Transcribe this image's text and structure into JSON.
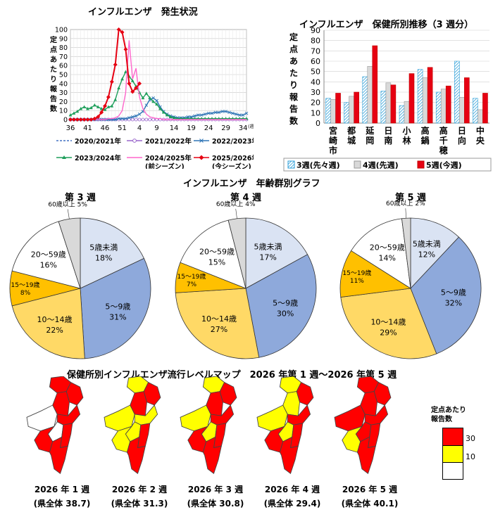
{
  "colors": {
    "s2020": "#4472C4",
    "s2021": "#9966CC",
    "s2022": "#2E75B6",
    "s2023": "#1E9E5A",
    "s2024": "#FF66CC",
    "s2025": "#E60012",
    "level30": "#FF0000",
    "level10": "#FFFF00",
    "level0": "#FFFFFF",
    "pie5u": "#DAE3F3",
    "pie5_9": "#8EA9DB",
    "pie10_14": "#FFD966",
    "pie15_19": "#FFC000",
    "pie20_59": "#FFFFFF",
    "pie60": "#D9D9D9"
  },
  "chart_data": [
    {
      "id": "trend",
      "type": "line",
      "title": "インフルエンザ　発生状況",
      "ylabel": "定点あたり報告数",
      "ylim": [
        0,
        100
      ],
      "yticks": [
        0,
        10,
        20,
        30,
        40,
        50,
        60,
        70,
        80,
        90,
        100
      ],
      "xticks": [
        "36",
        "41",
        "46",
        "51",
        "4",
        "9",
        "14",
        "19",
        "24",
        "29",
        "34"
      ],
      "xunit": "(週)",
      "series": [
        {
          "key": "s2020",
          "name": "2020/2021年",
          "style": "dash",
          "values": [
            0,
            0,
            0,
            0,
            0,
            0,
            0,
            0,
            0,
            0,
            0,
            0,
            0,
            0,
            0,
            0,
            0,
            0,
            0,
            0,
            0,
            0,
            0,
            0,
            0,
            0,
            0,
            0,
            0,
            0,
            0,
            0,
            0,
            0,
            0,
            0,
            0,
            0,
            0,
            0,
            0,
            0,
            0,
            0,
            0,
            0,
            0,
            0,
            0,
            0,
            0,
            0
          ]
        },
        {
          "key": "s2021",
          "name": "2021/2022年",
          "style": "circle",
          "values": [
            0,
            0,
            0,
            0,
            0,
            0,
            0,
            0,
            0,
            0,
            0,
            0,
            0,
            0,
            0,
            0,
            0,
            0,
            0,
            0,
            0,
            0,
            0,
            0,
            0,
            0,
            0,
            0,
            0,
            0,
            0,
            0,
            0,
            0,
            0,
            0,
            0,
            0,
            0,
            0,
            0,
            0,
            0,
            0,
            0,
            0,
            0,
            0,
            0,
            0,
            0,
            0
          ]
        },
        {
          "key": "s2022",
          "name": "2022/2023年",
          "style": "cross",
          "values": [
            0,
            0,
            0,
            0,
            0,
            0,
            0,
            0,
            0,
            0,
            0,
            0,
            0,
            0,
            1,
            1,
            1,
            2,
            3,
            4,
            6,
            9,
            16,
            22,
            24,
            21,
            14,
            9,
            6,
            4,
            3,
            2,
            2,
            2,
            3,
            3,
            4,
            5,
            5,
            6,
            7,
            7,
            8,
            8,
            9,
            9,
            8,
            7,
            6,
            5,
            5,
            7
          ]
        },
        {
          "key": "s2023",
          "name": "2023/2024年",
          "style": "triangle",
          "values": [
            5,
            7,
            9,
            12,
            14,
            12,
            13,
            16,
            14,
            12,
            11,
            14,
            15,
            22,
            35,
            45,
            53,
            48,
            43,
            37,
            30,
            24,
            29,
            24,
            20,
            17,
            12,
            8,
            5,
            3,
            2,
            1,
            1,
            1,
            1,
            1,
            1,
            1,
            1,
            1,
            1,
            1,
            1,
            1,
            1,
            1,
            1,
            1,
            1,
            1,
            1,
            1
          ]
        },
        {
          "key": "s2024",
          "name": "2024/2025年\n(前シーズン)",
          "style": "plain",
          "values": [
            0,
            0,
            0,
            0,
            0,
            0,
            0,
            0,
            0,
            0,
            0,
            1,
            1,
            2,
            4,
            10,
            30,
            88,
            45,
            57,
            25,
            12,
            6,
            3,
            2,
            1,
            1,
            0,
            0,
            0,
            0,
            0,
            0,
            0,
            0,
            0,
            0,
            0,
            0,
            0,
            0,
            0,
            0,
            0,
            0,
            0,
            0,
            0,
            0,
            0,
            0,
            0
          ]
        },
        {
          "key": "s2025",
          "name": "2025/2026年\n(今シーズン)",
          "style": "diamond",
          "values": [
            0,
            0,
            0,
            0,
            0,
            0,
            0,
            1,
            3,
            8,
            15,
            25,
            42,
            61,
            100,
            97,
            78,
            40,
            31,
            35,
            40
          ]
        }
      ]
    },
    {
      "id": "health",
      "type": "bar",
      "title": "インフルエンザ　保健所別推移（3 週分）",
      "ylabel": "定点あたり報告数",
      "ylim": [
        0,
        90
      ],
      "yticks": [
        0,
        10,
        20,
        30,
        40,
        50,
        60,
        70,
        80,
        90
      ],
      "categories": [
        "宮崎市",
        "都城",
        "延岡",
        "日南",
        "小林",
        "高鍋",
        "高千穂",
        "日向",
        "中央"
      ],
      "series": [
        {
          "key": "w3",
          "name": "3週(先々週)",
          "values": [
            24,
            20,
            45,
            31,
            17,
            52,
            30,
            60,
            24
          ]
        },
        {
          "key": "w4",
          "name": "4週(先週)",
          "values": [
            23,
            26,
            55,
            39,
            21,
            44,
            33,
            25,
            13
          ]
        },
        {
          "key": "w5",
          "name": "5週(今週)",
          "values": [
            29,
            30,
            75,
            37,
            48,
            54,
            36,
            44,
            29
          ]
        }
      ]
    },
    {
      "id": "age",
      "type": "pie",
      "title": "インフルエンザ　年齢群別グラフ",
      "pies": [
        {
          "title": "第 3 週",
          "slices": [
            {
              "key": "pie5u",
              "label": "5歳未満",
              "pct": "18%",
              "value": 18
            },
            {
              "key": "pie5_9",
              "label": "5～9歳",
              "pct": "31%",
              "value": 31
            },
            {
              "key": "pie10_14",
              "label": "10～14歳",
              "pct": "22%",
              "value": 22
            },
            {
              "key": "pie15_19",
              "label": "15～19歳",
              "pct": "8%",
              "value": 8
            },
            {
              "key": "pie20_59",
              "label": "20～59歳",
              "pct": "16%",
              "value": 16
            },
            {
              "key": "pie60",
              "label": "60歳以上 5%",
              "pct": "",
              "value": 5
            }
          ]
        },
        {
          "title": "第 4 週",
          "slices": [
            {
              "key": "pie5u",
              "label": "5歳未満",
              "pct": "17%",
              "value": 17
            },
            {
              "key": "pie5_9",
              "label": "5～9歳",
              "pct": "30%",
              "value": 30
            },
            {
              "key": "pie10_14",
              "label": "10～14歳",
              "pct": "27%",
              "value": 27
            },
            {
              "key": "pie15_19",
              "label": "15～19歳",
              "pct": "7%",
              "value": 7
            },
            {
              "key": "pie20_59",
              "label": "20～59歳",
              "pct": "15%",
              "value": 15
            },
            {
              "key": "pie60",
              "label": "60歳以上 4%",
              "pct": "",
              "value": 4
            }
          ]
        },
        {
          "title": "第 5 週",
          "slices": [
            {
              "key": "pie5u",
              "label": "5歳未満",
              "pct": "12%",
              "value": 12
            },
            {
              "key": "pie5_9",
              "label": "5～9歳",
              "pct": "32%",
              "value": 32
            },
            {
              "key": "pie10_14",
              "label": "10～14歳",
              "pct": "29%",
              "value": 29
            },
            {
              "key": "pie15_19",
              "label": "15～19歳",
              "pct": "11%",
              "value": 11
            },
            {
              "key": "pie20_59",
              "label": "20～59歳",
              "pct": "14%",
              "value": 14
            },
            {
              "key": "pie60",
              "label": "60歳以上 2%",
              "pct": "",
              "value": 2
            }
          ]
        }
      ]
    }
  ],
  "map": {
    "title": "保健所別インフルエンザ流行レベルマップ　2026 年第 1 週～2026 年第 5 週",
    "legend_title": "定点あたり\n報告数",
    "legend_values": [
      "30",
      "10"
    ],
    "weeks": [
      {
        "line1": "2026 年 1 週",
        "line2": "(県全体 38.7)",
        "levels": [
          "level30",
          "level30",
          "level30",
          "level0",
          "level30",
          "level0",
          "level30",
          "level30",
          "level30"
        ]
      },
      {
        "line1": "2026 年 2 週",
        "line2": "(県全体 31.3)",
        "levels": [
          "level10",
          "level30",
          "level30",
          "level10",
          "level10",
          "level10",
          "level10",
          "level30",
          "level30"
        ]
      },
      {
        "line1": "2026 年 3 週",
        "line2": "(県全体 30.8)",
        "levels": [
          "level10",
          "level30",
          "level30",
          "level10",
          "level30",
          "level10",
          "level30",
          "level30",
          "level30"
        ]
      },
      {
        "line1": "2026 年 4 週",
        "line2": "(県全体 29.4)",
        "levels": [
          "level10",
          "level30",
          "level10",
          "level10",
          "level30",
          "level10",
          "level30",
          "level30",
          "level30"
        ]
      },
      {
        "line1": "2026 年 5 週",
        "line2": "(県全体 40.1)",
        "levels": [
          "level30",
          "level30",
          "level30",
          "level30",
          "level30",
          "level30",
          "level10",
          "level30",
          "level30"
        ]
      }
    ]
  }
}
